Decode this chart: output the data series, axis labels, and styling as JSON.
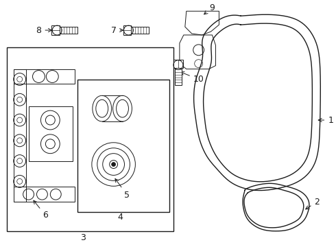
{
  "bg_color": "#ffffff",
  "line_color": "#1a1a1a",
  "lw": 1.0,
  "tlw": 0.7,
  "fs": 9
}
